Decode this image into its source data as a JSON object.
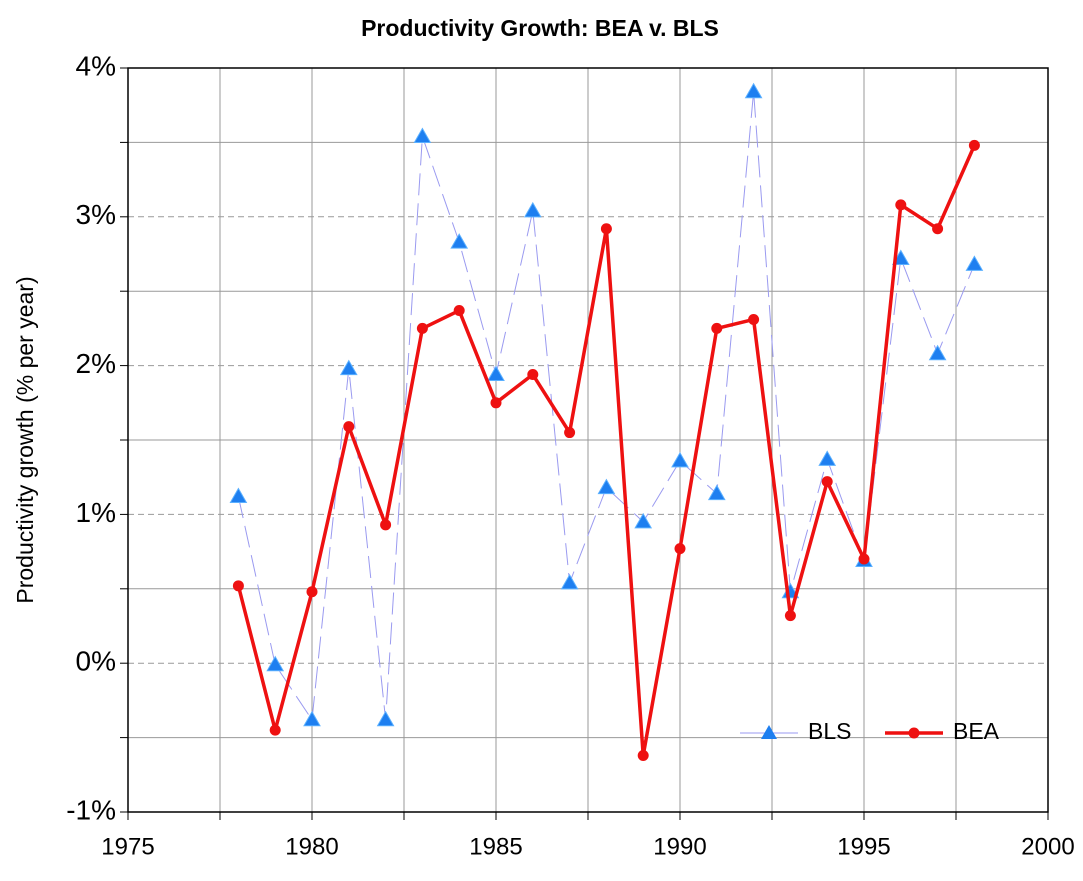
{
  "chart_data": {
    "type": "line",
    "title": "Productivity Growth: BEA v. BLS",
    "ylabel": "Productivity growth (% per year)",
    "x": [
      1978,
      1979,
      1980,
      1981,
      1982,
      1983,
      1984,
      1985,
      1986,
      1987,
      1988,
      1989,
      1990,
      1991,
      1992,
      1993,
      1994,
      1995,
      1996,
      1997,
      1998
    ],
    "series": [
      {
        "name": "BLS",
        "color": "#1e7ff0",
        "line_color": "#9a9af0",
        "marker": "triangle",
        "values": [
          1.12,
          -0.01,
          -0.38,
          1.98,
          -0.38,
          3.54,
          2.83,
          1.94,
          3.04,
          0.54,
          1.18,
          0.95,
          1.36,
          1.14,
          3.84,
          0.48,
          1.37,
          0.69,
          2.72,
          2.08,
          2.68
        ]
      },
      {
        "name": "BEA",
        "color": "#ee1111",
        "line_color": "#ee1111",
        "marker": "circle",
        "values": [
          0.52,
          -0.45,
          0.48,
          1.59,
          0.93,
          2.25,
          2.37,
          1.75,
          1.94,
          1.55,
          2.92,
          -0.62,
          0.77,
          2.25,
          2.31,
          0.32,
          1.22,
          0.7,
          3.08,
          2.92,
          3.48
        ]
      }
    ],
    "xlim": [
      1975,
      2000
    ],
    "xticks": [
      1975,
      1980,
      1985,
      1990,
      1995,
      2000
    ],
    "xminor": [
      1977.5,
      1982.5,
      1987.5,
      1992.5,
      1997.5
    ],
    "ylim": [
      -1,
      4
    ],
    "yticks": [
      {
        "value": -1,
        "label": "-1%"
      },
      {
        "value": 0,
        "label": "0%"
      },
      {
        "value": 1,
        "label": "1%"
      },
      {
        "value": 2,
        "label": "2%"
      },
      {
        "value": 3,
        "label": "3%"
      },
      {
        "value": 4,
        "label": "4%"
      }
    ],
    "yminor": [
      -0.5,
      0.5,
      1.5,
      2.5,
      3.5
    ],
    "grid": true,
    "legend": "lower right"
  }
}
